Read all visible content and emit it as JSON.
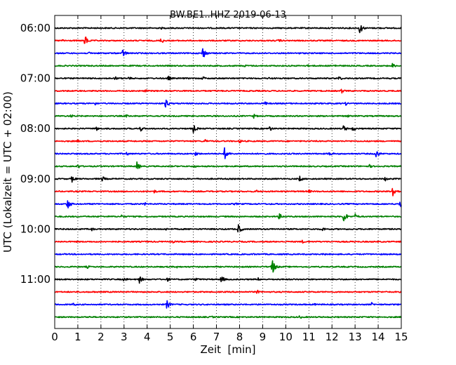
{
  "chart_data": {
    "type": "line",
    "title": "BW.BE1..HHZ 2019-06-13",
    "xlabel": "Zeit  [min]",
    "ylabel": "UTC (Lokalzeit = UTC + 02:00)",
    "xlim": [
      0,
      15
    ],
    "x_ticks": [
      "0",
      "1",
      "2",
      "3",
      "4",
      "5",
      "6",
      "7",
      "8",
      "9",
      "10",
      "11",
      "12",
      "13",
      "14",
      "15"
    ],
    "y_ticks": [
      "06:00",
      "07:00",
      "08:00",
      "09:00",
      "10:00",
      "11:00"
    ],
    "grid": "vertical dotted",
    "trace_interval_minutes": 15,
    "color_cycle": [
      "#000000",
      "#ff0000",
      "#0000ff",
      "#008000"
    ],
    "series": [
      {
        "start": "06:00",
        "events": [
          {
            "t": 13.2,
            "amp": 0.9
          },
          {
            "t": 4.6,
            "amp": 0.2
          }
        ]
      },
      {
        "start": "06:15",
        "events": [
          {
            "t": 1.3,
            "amp": 0.9
          },
          {
            "t": 4.6,
            "amp": 0.5
          },
          {
            "t": 0.35,
            "amp": 0.3
          },
          {
            "t": 9.7,
            "amp": 0.3
          }
        ]
      },
      {
        "start": "06:30",
        "events": [
          {
            "t": 2.95,
            "amp": 0.7
          },
          {
            "t": 6.4,
            "amp": 1.0
          },
          {
            "t": 1.5,
            "amp": 0.25
          },
          {
            "t": 10.5,
            "amp": 0.3
          }
        ]
      },
      {
        "start": "06:45",
        "events": [
          {
            "t": 14.6,
            "amp": 0.45
          },
          {
            "t": 8.2,
            "amp": 0.25
          },
          {
            "t": 10.9,
            "amp": 0.3
          },
          {
            "t": 12.1,
            "amp": 0.25
          }
        ]
      },
      {
        "start": "07:00",
        "events": [
          {
            "t": 2.6,
            "amp": 0.35
          },
          {
            "t": 3.2,
            "amp": 0.3
          },
          {
            "t": 4.9,
            "amp": 0.45
          },
          {
            "t": 6.4,
            "amp": 0.35
          },
          {
            "t": 9.3,
            "amp": 0.3
          },
          {
            "t": 12.3,
            "amp": 0.4
          }
        ]
      },
      {
        "start": "07:15",
        "events": [
          {
            "t": 3.9,
            "amp": 0.25
          },
          {
            "t": 12.4,
            "amp": 0.45
          }
        ]
      },
      {
        "start": "07:30",
        "events": [
          {
            "t": 4.8,
            "amp": 0.75
          },
          {
            "t": 1.7,
            "amp": 0.4
          },
          {
            "t": 9.1,
            "amp": 0.3
          },
          {
            "t": 12.6,
            "amp": 0.3
          }
        ]
      },
      {
        "start": "07:45",
        "events": [
          {
            "t": 8.6,
            "amp": 0.4
          },
          {
            "t": 0.7,
            "amp": 0.3
          },
          {
            "t": 3.1,
            "amp": 0.25
          },
          {
            "t": 12.7,
            "amp": 0.3
          }
        ]
      },
      {
        "start": "08:00",
        "events": [
          {
            "t": 6.0,
            "amp": 0.7
          },
          {
            "t": 3.7,
            "amp": 0.5
          },
          {
            "t": 1.8,
            "amp": 0.4
          },
          {
            "t": 9.3,
            "amp": 0.45
          },
          {
            "t": 12.5,
            "amp": 0.55
          },
          {
            "t": 12.9,
            "amp": 0.45
          }
        ]
      },
      {
        "start": "08:15",
        "events": [
          {
            "t": 6.5,
            "amp": 0.35
          },
          {
            "t": 8.0,
            "amp": 0.35
          },
          {
            "t": 1.0,
            "amp": 0.25
          }
        ]
      },
      {
        "start": "08:30",
        "events": [
          {
            "t": 7.35,
            "amp": 1.0
          },
          {
            "t": 13.9,
            "amp": 0.75
          },
          {
            "t": 6.1,
            "amp": 0.4
          },
          {
            "t": 11.9,
            "amp": 0.45
          },
          {
            "t": 3.1,
            "amp": 0.35
          }
        ]
      },
      {
        "start": "08:45",
        "events": [
          {
            "t": 3.55,
            "amp": 0.75
          },
          {
            "t": 1.0,
            "amp": 0.4
          },
          {
            "t": 13.6,
            "amp": 0.35
          },
          {
            "t": 6.0,
            "amp": 0.3
          }
        ]
      },
      {
        "start": "09:00",
        "events": [
          {
            "t": 0.75,
            "amp": 0.55
          },
          {
            "t": 2.05,
            "amp": 0.5
          },
          {
            "t": 10.6,
            "amp": 0.5
          },
          {
            "t": 14.3,
            "amp": 0.4
          }
        ]
      },
      {
        "start": "09:15",
        "events": [
          {
            "t": 14.6,
            "amp": 1.25
          },
          {
            "t": 4.3,
            "amp": 0.3
          },
          {
            "t": 8.7,
            "amp": 0.3
          },
          {
            "t": 11.0,
            "amp": 0.3
          }
        ]
      },
      {
        "start": "09:30",
        "events": [
          {
            "t": 0.55,
            "amp": 0.85
          },
          {
            "t": 14.95,
            "amp": 0.8
          },
          {
            "t": 3.9,
            "amp": 0.25
          },
          {
            "t": 7.8,
            "amp": 0.25
          }
        ]
      },
      {
        "start": "09:45",
        "events": [
          {
            "t": 12.5,
            "amp": 1.0
          },
          {
            "t": 13.0,
            "amp": 0.5
          },
          {
            "t": 9.7,
            "amp": 0.55
          },
          {
            "t": 2.9,
            "amp": 0.3
          }
        ]
      },
      {
        "start": "10:00",
        "events": [
          {
            "t": 7.95,
            "amp": 0.8
          },
          {
            "t": 11.6,
            "amp": 0.35
          },
          {
            "t": 1.6,
            "amp": 0.3
          },
          {
            "t": 4.8,
            "amp": 0.25
          }
        ]
      },
      {
        "start": "10:15",
        "events": [
          {
            "t": 10.7,
            "amp": 0.3
          },
          {
            "t": 5.1,
            "amp": 0.25
          }
        ]
      },
      {
        "start": "10:30",
        "events": [
          {
            "t": 8.6,
            "amp": 0.2
          },
          {
            "t": 11.7,
            "amp": 0.2
          }
        ]
      },
      {
        "start": "10:45",
        "events": [
          {
            "t": 9.4,
            "amp": 1.35
          },
          {
            "t": 1.4,
            "amp": 0.3
          },
          {
            "t": 5.3,
            "amp": 0.25
          }
        ]
      },
      {
        "start": "11:00",
        "events": [
          {
            "t": 3.65,
            "amp": 0.7
          },
          {
            "t": 7.2,
            "amp": 0.65
          },
          {
            "t": 3.0,
            "amp": 0.4
          },
          {
            "t": 4.85,
            "amp": 0.4
          },
          {
            "t": 6.1,
            "amp": 0.35
          },
          {
            "t": 8.8,
            "amp": 0.3
          }
        ]
      },
      {
        "start": "11:15",
        "events": [
          {
            "t": 8.75,
            "amp": 0.35
          },
          {
            "t": 1.6,
            "amp": 0.2
          }
        ]
      },
      {
        "start": "11:30",
        "events": [
          {
            "t": 4.85,
            "amp": 0.75
          },
          {
            "t": 13.7,
            "amp": 0.35
          },
          {
            "t": 0.8,
            "amp": 0.3
          },
          {
            "t": 11.2,
            "amp": 0.25
          }
        ]
      },
      {
        "start": "11:45",
        "events": [
          {
            "t": 10.6,
            "amp": 0.3
          },
          {
            "t": 1.4,
            "amp": 0.25
          },
          {
            "t": 6.8,
            "amp": 0.2
          }
        ]
      }
    ]
  }
}
